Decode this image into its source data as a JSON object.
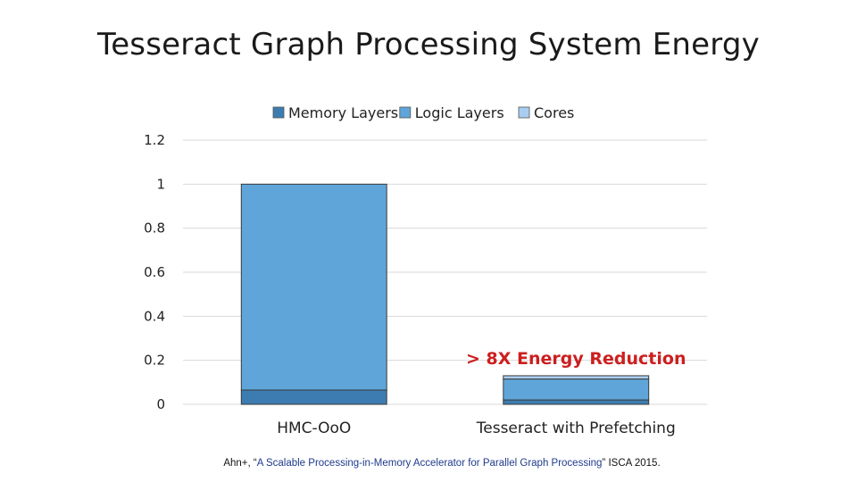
{
  "chart_data": {
    "type": "bar",
    "stacked": true,
    "title": "Tesseract Graph Processing System Energy",
    "categories": [
      "HMC-OoO",
      "Tesseract with Prefetching"
    ],
    "series": [
      {
        "name": "Memory Layers",
        "color": "#3d7cb0",
        "values": [
          0.065,
          0.02
        ]
      },
      {
        "name": "Logic Layers",
        "color": "#5fa5da",
        "values": [
          0.935,
          0.095
        ]
      },
      {
        "name": "Cores",
        "color": "#a9cdef",
        "values": [
          0.0,
          0.015
        ]
      }
    ],
    "yticks": [
      "0",
      "0.2",
      "0.4",
      "0.6",
      "0.8",
      "1",
      "1.2"
    ],
    "ylim": [
      0,
      1.2
    ],
    "grid": true,
    "legend_position": "top-center",
    "annotation": {
      "text": "> 8X Energy Reduction",
      "color": "#cc1f1f"
    }
  },
  "citation": {
    "prefix": "Ahn+, “",
    "quote": "A Scalable Processing-in-Memory Accelerator for Parallel Graph Processing",
    "suffix": "” ISCA 2015."
  }
}
